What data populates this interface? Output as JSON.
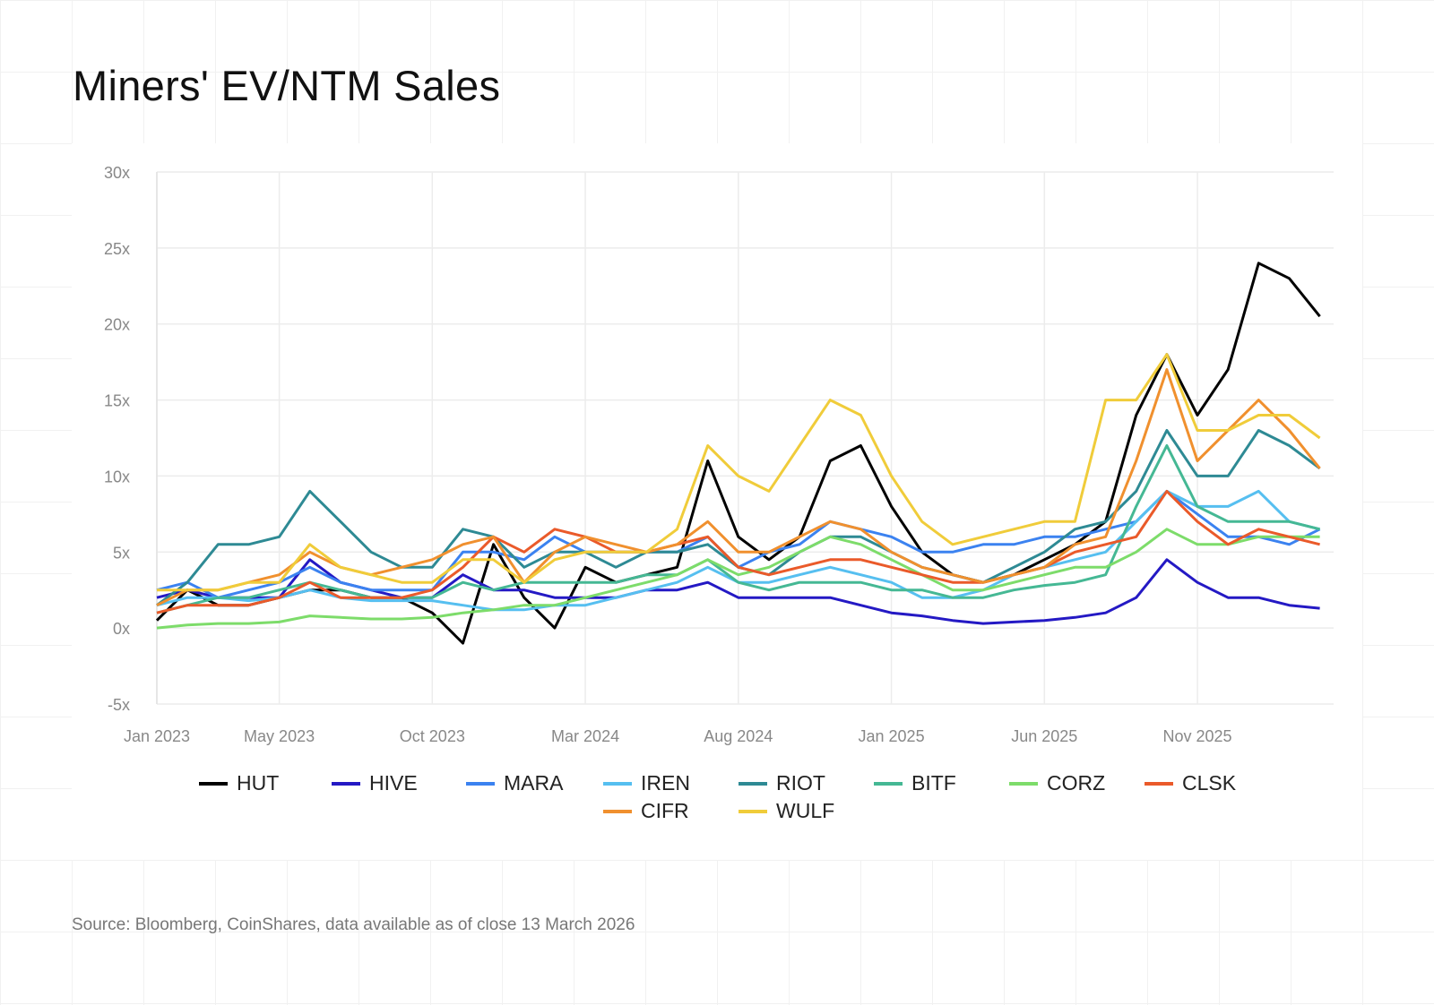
{
  "chart_data": {
    "type": "line",
    "title": "Miners' EV/NTM Sales",
    "xlabel": "",
    "ylabel": "",
    "ylim": [
      -5,
      30
    ],
    "yticks": [
      30,
      25,
      20,
      15,
      10,
      5,
      0,
      -5
    ],
    "ytick_labels": [
      "30x",
      "25x",
      "20x",
      "15x",
      "10x",
      "5x",
      "0x",
      "-5x"
    ],
    "xlim": [
      "2023-01",
      "2026-03"
    ],
    "xticks": [
      "2023-01",
      "2023-05",
      "2023-10",
      "2024-03",
      "2024-08",
      "2025-01",
      "2025-06",
      "2025-11"
    ],
    "xtick_labels": [
      "Jan 2023",
      "May 2023",
      "Oct 2023",
      "Mar 2024",
      "Aug 2024",
      "Jan 2025",
      "Jun 2025",
      "Nov 2025"
    ],
    "grid": true,
    "legend_position": "bottom",
    "x": [
      "2023-01",
      "2023-02",
      "2023-03",
      "2023-04",
      "2023-05",
      "2023-06",
      "2023-07",
      "2023-08",
      "2023-09",
      "2023-10",
      "2023-11",
      "2023-12",
      "2024-01",
      "2024-02",
      "2024-03",
      "2024-04",
      "2024-05",
      "2024-06",
      "2024-07",
      "2024-08",
      "2024-09",
      "2024-10",
      "2024-11",
      "2024-12",
      "2025-01",
      "2025-02",
      "2025-03",
      "2025-04",
      "2025-05",
      "2025-06",
      "2025-07",
      "2025-08",
      "2025-09",
      "2025-10",
      "2025-11",
      "2025-12",
      "2026-01",
      "2026-02",
      "2026-03"
    ],
    "series": [
      {
        "name": "HUT",
        "color": "#000000",
        "values": [
          0.5,
          2.5,
          1.5,
          1.5,
          2,
          2.5,
          2.5,
          2,
          2,
          1,
          -1,
          5.5,
          2,
          0,
          4,
          3,
          3.5,
          4,
          11,
          6,
          4.5,
          6,
          11,
          12,
          8,
          5,
          3.5,
          3,
          3.5,
          4.5,
          5.5,
          7,
          14,
          18,
          14,
          17,
          24,
          23,
          20.5
        ]
      },
      {
        "name": "HIVE",
        "color": "#2419c4",
        "values": [
          2,
          2.5,
          2,
          2,
          2,
          4.5,
          3,
          2.5,
          2,
          2,
          3.5,
          2.5,
          2.5,
          2,
          2,
          2,
          2.5,
          2.5,
          3,
          2,
          2,
          2,
          2,
          1.5,
          1,
          0.8,
          0.5,
          0.3,
          0.4,
          0.5,
          0.7,
          1,
          2,
          4.5,
          3,
          2,
          2,
          1.5,
          1.3
        ]
      },
      {
        "name": "MARA",
        "color": "#3b82f0",
        "values": [
          2.5,
          3,
          2,
          2.5,
          3,
          4,
          3,
          2.5,
          2.5,
          2.5,
          5,
          5,
          4.5,
          6,
          5,
          5,
          5,
          5,
          6,
          4,
          5,
          5.5,
          7,
          6.5,
          6,
          5,
          5,
          5.5,
          5.5,
          6,
          6,
          6.5,
          7,
          9,
          7.5,
          6,
          6,
          5.5,
          6.5
        ]
      },
      {
        "name": "IREN",
        "color": "#56bff0",
        "values": [
          1.5,
          2,
          2,
          1.8,
          2,
          2.5,
          2,
          1.8,
          1.8,
          1.8,
          1.5,
          1.2,
          1.2,
          1.5,
          1.5,
          2,
          2.5,
          3,
          4,
          3,
          3,
          3.5,
          4,
          3.5,
          3,
          2,
          2,
          2.5,
          3.5,
          4,
          4.5,
          5,
          7,
          9,
          8,
          8,
          9,
          7,
          6.5
        ]
      },
      {
        "name": "RIOT",
        "color": "#2e8a94",
        "values": [
          1.5,
          3,
          5.5,
          5.5,
          6,
          9,
          7,
          5,
          4,
          4,
          6.5,
          6,
          4,
          5,
          5,
          4,
          5,
          5,
          5.5,
          4,
          3.5,
          5,
          6,
          6,
          5,
          4,
          3.5,
          3,
          4,
          5,
          6.5,
          7,
          9,
          13,
          10,
          10,
          13,
          12,
          10.5
        ]
      },
      {
        "name": "BITF",
        "color": "#45b894",
        "values": [
          1,
          1.5,
          2,
          2,
          2.5,
          3,
          2.5,
          2,
          2,
          2,
          3,
          2.5,
          3,
          3,
          3,
          3,
          3.5,
          3.5,
          4.5,
          3,
          2.5,
          3,
          3,
          3,
          2.5,
          2.5,
          2,
          2,
          2.5,
          2.8,
          3,
          3.5,
          8,
          12,
          8,
          7,
          7,
          7,
          6.5
        ]
      },
      {
        "name": "CORZ",
        "color": "#7ddc6a",
        "values": [
          0,
          0.2,
          0.3,
          0.3,
          0.4,
          0.8,
          0.7,
          0.6,
          0.6,
          0.7,
          1,
          1.2,
          1.5,
          1.5,
          2,
          2.5,
          3,
          3.5,
          4.5,
          3.5,
          4,
          5,
          6,
          5.5,
          4.5,
          3.5,
          2.5,
          2.5,
          3,
          3.5,
          4,
          4,
          5,
          6.5,
          5.5,
          5.5,
          6,
          6,
          6
        ]
      },
      {
        "name": "CLSK",
        "color": "#ea5a2a",
        "values": [
          1,
          1.5,
          1.5,
          1.5,
          2,
          3,
          2,
          2,
          2,
          2.5,
          4,
          6,
          5,
          6.5,
          6,
          5,
          5,
          5.5,
          6,
          4,
          3.5,
          4,
          4.5,
          4.5,
          4,
          3.5,
          3,
          3,
          3.5,
          4,
          5,
          5.5,
          6,
          9,
          7,
          5.5,
          6.5,
          6,
          5.5
        ]
      },
      {
        "name": "CIFR",
        "color": "#f0902e",
        "values": [
          1.5,
          2.5,
          2.5,
          3,
          3.5,
          5,
          4,
          3.5,
          4,
          4.5,
          5.5,
          6,
          3,
          5,
          6,
          5.5,
          5,
          5.5,
          7,
          5,
          5,
          6,
          7,
          6.5,
          5,
          4,
          3.5,
          3,
          3.5,
          4,
          5.5,
          6,
          11,
          17,
          11,
          13,
          15,
          13,
          10.5
        ]
      },
      {
        "name": "WULF",
        "color": "#f0cc3a",
        "values": [
          2.5,
          2.5,
          2.5,
          3,
          3,
          5.5,
          4,
          3.5,
          3,
          3,
          4.5,
          4.5,
          3,
          4.5,
          5,
          5,
          5,
          6.5,
          12,
          10,
          9,
          12,
          15,
          14,
          10,
          7,
          5.5,
          6,
          6.5,
          7,
          7,
          15,
          15,
          18,
          13,
          13,
          14,
          14,
          12.5
        ]
      }
    ]
  },
  "source": "Source: Bloomberg, CoinShares, data available as of close 13 March 2026"
}
